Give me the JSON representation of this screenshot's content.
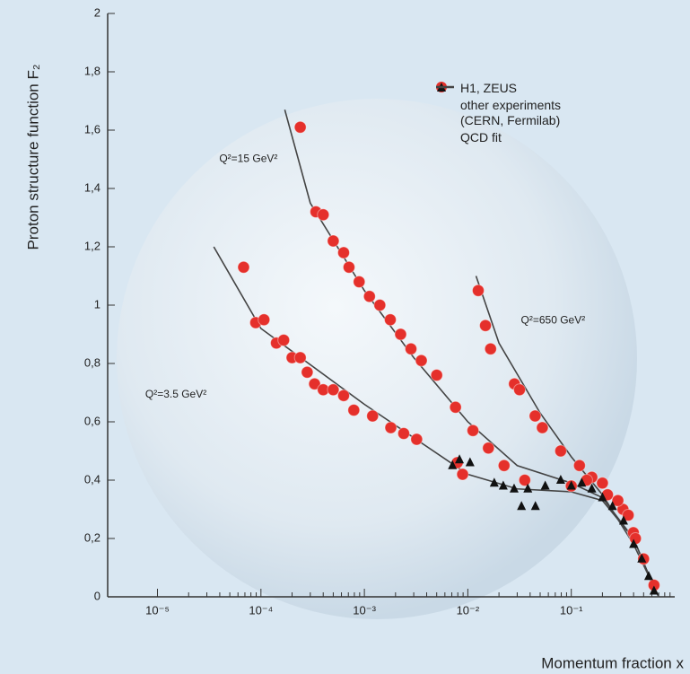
{
  "chart_data": {
    "type": "scatter",
    "x_label": "Momentum fraction x",
    "y_label": "Proton structure function F₂",
    "log_x": true,
    "xlim": [
      3.3e-06,
      1
    ],
    "ylim": [
      0,
      2
    ],
    "xticks": [
      {
        "value": 1e-05,
        "label": "10⁻⁵"
      },
      {
        "value": 0.0001,
        "label": "10⁻⁴"
      },
      {
        "value": 0.001,
        "label": "10⁻³"
      },
      {
        "value": 0.01,
        "label": "10⁻²"
      },
      {
        "value": 0.1,
        "label": "10⁻¹"
      }
    ],
    "yticks": [
      0,
      {
        "value": 0.2,
        "label": "0,2"
      },
      {
        "value": 0.4,
        "label": "0,4"
      },
      {
        "value": 0.6,
        "label": "0,6"
      },
      {
        "value": 0.8,
        "label": "0,8"
      },
      1,
      {
        "value": 1.2,
        "label": "1,2"
      },
      {
        "value": 1.4,
        "label": "1,4"
      },
      {
        "value": 1.6,
        "label": "1,6"
      },
      {
        "value": 1.8,
        "label": "1,8"
      },
      2
    ],
    "series": [
      {
        "name": "H1, ZEUS",
        "color": "#e5302b",
        "marker": "circle",
        "x": [
          6.8e-05,
          8.9e-05,
          0.000107,
          0.000141,
          0.000166,
          0.0002,
          0.00024,
          0.00028,
          0.00033,
          0.0004,
          0.0005,
          0.00063,
          0.00079,
          0.0012,
          0.0018,
          0.0024,
          0.0032,
          0.0079,
          0.0089,
          0.00024,
          0.00034,
          0.0004,
          0.0005,
          0.00063,
          0.00071,
          0.00089,
          0.00112,
          0.00141,
          0.00178,
          0.00224,
          0.00282,
          0.00355,
          0.005,
          0.0076,
          0.0112,
          0.0158,
          0.0224,
          0.0355,
          0.0126,
          0.0148,
          0.0166,
          0.0282,
          0.0316,
          0.0447,
          0.0525,
          0.079,
          0.12,
          0.158,
          0.224,
          0.316,
          0.398,
          0.5,
          0.63,
          0.1,
          0.141,
          0.2,
          0.282,
          0.355,
          0.417
        ],
        "values": [
          1.13,
          0.94,
          0.95,
          0.87,
          0.88,
          0.82,
          0.82,
          0.77,
          0.73,
          0.71,
          0.71,
          0.69,
          0.64,
          0.62,
          0.58,
          0.56,
          0.54,
          0.46,
          0.42,
          1.61,
          1.32,
          1.31,
          1.22,
          1.18,
          1.13,
          1.08,
          1.03,
          1.0,
          0.95,
          0.9,
          0.85,
          0.81,
          0.76,
          0.65,
          0.57,
          0.51,
          0.45,
          0.4,
          1.05,
          0.93,
          0.85,
          0.73,
          0.71,
          0.62,
          0.58,
          0.5,
          0.45,
          0.41,
          0.35,
          0.3,
          0.22,
          0.13,
          0.04,
          0.38,
          0.4,
          0.39,
          0.33,
          0.28,
          0.2
        ]
      },
      {
        "name": "other experiments (CERN, Fermilab)",
        "color": "#111111",
        "marker": "triangle",
        "x": [
          0.0071,
          0.0083,
          0.0105,
          0.018,
          0.022,
          0.028,
          0.033,
          0.038,
          0.045,
          0.056,
          0.079,
          0.1,
          0.126,
          0.158,
          0.2,
          0.25,
          0.32,
          0.4,
          0.48,
          0.56,
          0.63
        ],
        "values": [
          0.45,
          0.47,
          0.46,
          0.39,
          0.38,
          0.37,
          0.31,
          0.37,
          0.31,
          0.38,
          0.4,
          0.38,
          0.39,
          0.37,
          0.34,
          0.31,
          0.26,
          0.18,
          0.13,
          0.07,
          0.02
        ]
      },
      {
        "name": "QCD fit",
        "color": "#444444",
        "marker": "line",
        "curves": [
          {
            "label": "Q²=3.5 GeV²",
            "x": [
              3.5e-05,
              0.0001,
              0.001,
              0.01,
              0.03,
              0.1,
              0.2,
              0.4,
              0.6,
              0.7
            ],
            "values": [
              1.2,
              0.92,
              0.66,
              0.42,
              0.37,
              0.36,
              0.33,
              0.2,
              0.05,
              0
            ]
          },
          {
            "label": "Q²=15 GeV²",
            "x": [
              0.00017,
              0.0003,
              0.001,
              0.003,
              0.01,
              0.03,
              0.1,
              0.2,
              0.4,
              0.6,
              0.7
            ],
            "values": [
              1.67,
              1.35,
              1.05,
              0.82,
              0.6,
              0.45,
              0.39,
              0.34,
              0.2,
              0.05,
              0
            ]
          },
          {
            "label": "Q²=650 GeV²",
            "x": [
              0.012,
              0.02,
              0.05,
              0.1,
              0.2,
              0.4,
              0.6,
              0.7
            ],
            "values": [
              1.1,
              0.87,
              0.63,
              0.48,
              0.35,
              0.18,
              0.05,
              0
            ]
          }
        ]
      }
    ]
  }
}
